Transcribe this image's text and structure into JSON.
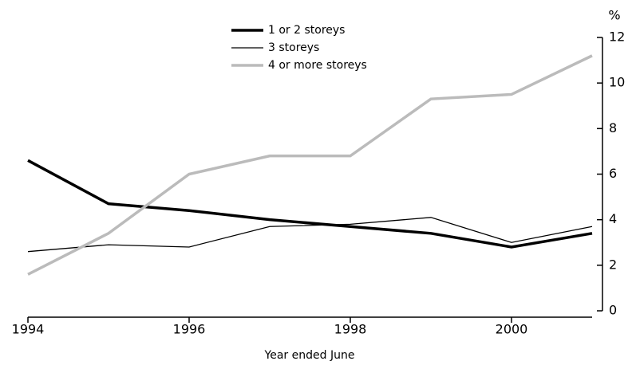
{
  "chart_data": {
    "type": "line",
    "x_label": "Year ended June",
    "y_unit": "%",
    "x": [
      1994,
      1995,
      1996,
      1997,
      1998,
      1999,
      2000,
      2001
    ],
    "series": [
      {
        "name": "1 or 2 storeys",
        "color": "#000000",
        "values": [
          6.6,
          4.7,
          4.4,
          4.0,
          3.7,
          3.4,
          2.8,
          3.4
        ]
      },
      {
        "name": "3 storeys",
        "color": "#000000",
        "values": [
          2.6,
          2.9,
          2.8,
          3.7,
          3.8,
          4.1,
          3.0,
          3.7
        ]
      },
      {
        "name": "4 or more storeys",
        "color": "#bbbbbb",
        "values": [
          1.6,
          3.4,
          6.0,
          6.8,
          6.8,
          9.3,
          9.5,
          11.2
        ]
      }
    ],
    "xlim": [
      1994,
      2001
    ],
    "xticks": [
      1994,
      1996,
      1998,
      2000
    ],
    "ylim": [
      0,
      12
    ],
    "yticks": [
      0,
      2,
      4,
      6,
      8,
      10,
      12
    ],
    "legend": "top"
  }
}
